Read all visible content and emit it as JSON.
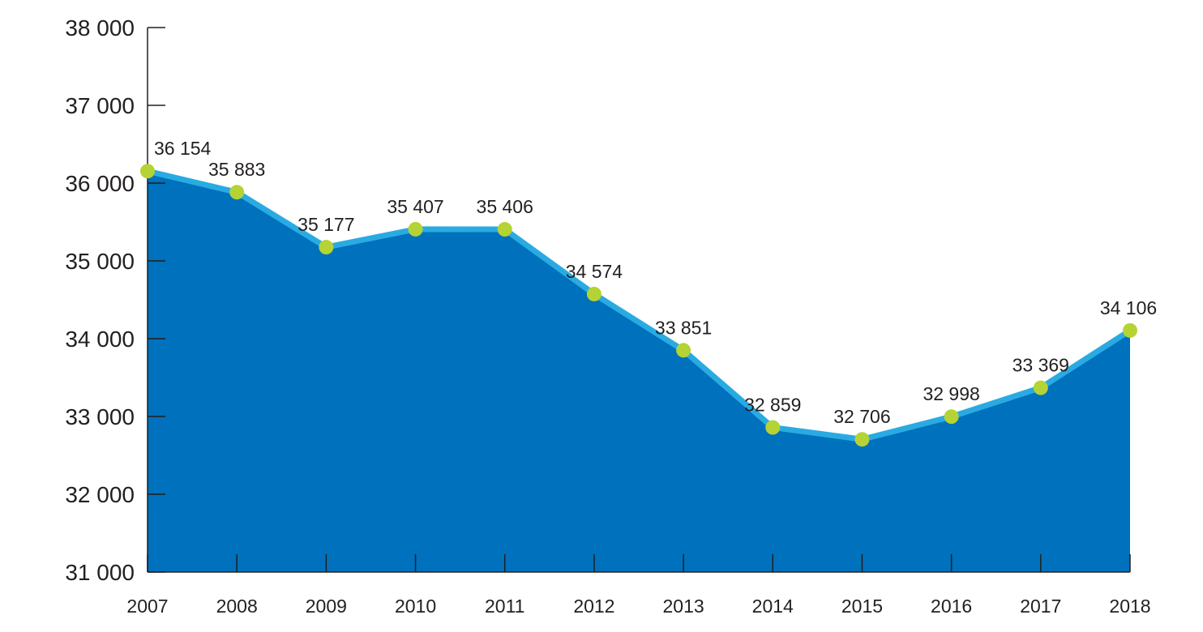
{
  "chart_data": {
    "type": "area",
    "title": "",
    "xlabel": "",
    "ylabel": "",
    "categories": [
      "2007",
      "2008",
      "2009",
      "2010",
      "2011",
      "2012",
      "2013",
      "2014",
      "2015",
      "2016",
      "2017",
      "2018"
    ],
    "values": [
      36154,
      35883,
      35177,
      35407,
      35406,
      34574,
      33851,
      32859,
      32706,
      32998,
      33369,
      34106
    ],
    "data_labels": [
      "36 154",
      "35 883",
      "35 177",
      "35 407",
      "35 406",
      "34 574",
      "33 851",
      "32 859",
      "32 706",
      "32 998",
      "33 369",
      "34 106"
    ],
    "ylim": [
      31000,
      38000
    ],
    "yticks": [
      31000,
      32000,
      33000,
      34000,
      35000,
      36000,
      37000,
      38000
    ],
    "ytick_labels": [
      "31 000",
      "32 000",
      "33 000",
      "34 000",
      "35 000",
      "36 000",
      "37 000",
      "38 000"
    ],
    "grid": false,
    "legend": "none",
    "colors": {
      "area": "#0071bc",
      "line": "#29abe2",
      "marker": "#b5d334",
      "axis": "#231f20"
    }
  }
}
